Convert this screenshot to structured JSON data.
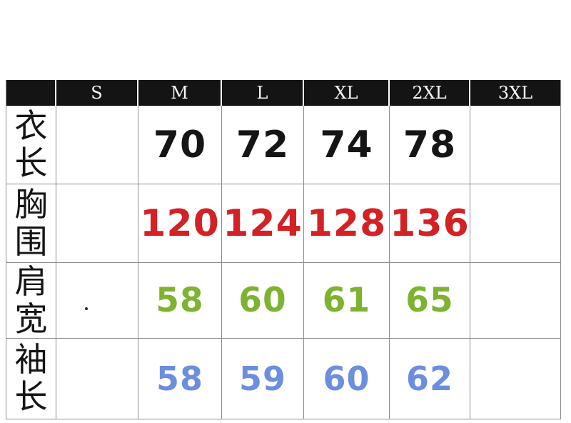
{
  "meta": {
    "description": "Clothing size chart table (Chinese apparel measurements)"
  },
  "colors": {
    "header_bg": "#141414",
    "header_fg": "#f5f5f5",
    "grid_line": "#8d8d8d",
    "row_garment_length": "#151515",
    "row_chest": "#d32125",
    "row_shoulder": "#7db32f",
    "row_sleeve": "#6b8ede"
  },
  "table": {
    "header": [
      "S",
      "M",
      "L",
      "XL",
      "2XL",
      "3XL"
    ],
    "rows": [
      {
        "label": "衣长",
        "color": "#151515",
        "cells": [
          "",
          "70",
          "72",
          "74",
          "78",
          ""
        ]
      },
      {
        "label": "胸围",
        "color": "#d32125",
        "cells": [
          "",
          "120",
          "124",
          "128",
          "136",
          ""
        ]
      },
      {
        "label": "肩宽",
        "color": "#7db32f",
        "cells": [
          "",
          "58",
          "60",
          "61",
          "65",
          ""
        ]
      },
      {
        "label": "袖长",
        "color": "#6b8ede",
        "cells": [
          "",
          "58",
          "59",
          "60",
          "62",
          ""
        ]
      }
    ]
  },
  "chart_data": {
    "type": "table",
    "title": "",
    "columns": [
      "",
      "S",
      "M",
      "L",
      "XL",
      "2XL",
      "3XL"
    ],
    "rows": [
      {
        "label": "衣长",
        "values": [
          null,
          70,
          72,
          74,
          78,
          null
        ]
      },
      {
        "label": "胸围",
        "values": [
          null,
          120,
          124,
          128,
          136,
          null
        ]
      },
      {
        "label": "肩宽",
        "values": [
          null,
          58,
          60,
          61,
          65,
          null
        ]
      },
      {
        "label": "袖长",
        "values": [
          null,
          58,
          59,
          60,
          62,
          null
        ]
      }
    ]
  }
}
